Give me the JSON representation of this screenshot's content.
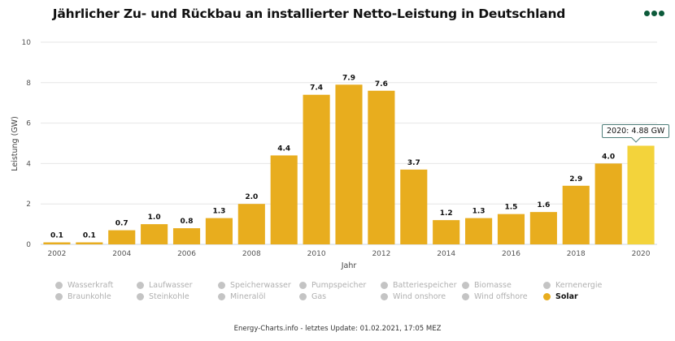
{
  "header": {
    "title": "Jährlicher Zu- und Rückbau an installierter Netto-Leistung in Deutschland",
    "menu_icon": "more-dots-icon"
  },
  "chart_data": {
    "type": "bar",
    "title": "Jährlicher Zu- und Rückbau an installierter Netto-Leistung in Deutschland",
    "xlabel": "Jahr",
    "ylabel": "Leistung (GW)",
    "ylim": [
      0,
      10
    ],
    "yticks": [
      "0",
      "2",
      "4",
      "6",
      "8",
      "10"
    ],
    "ytick_values": [
      0,
      2,
      4,
      6,
      8,
      10
    ],
    "categories": [
      "2002",
      "2003",
      "2004",
      "2005",
      "2006",
      "2007",
      "2008",
      "2009",
      "2010",
      "2011",
      "2012",
      "2013",
      "2014",
      "2015",
      "2016",
      "2017",
      "2018",
      "2019",
      "2020"
    ],
    "xtick_labels": [
      "2002",
      "2004",
      "2006",
      "2008",
      "2010",
      "2012",
      "2014",
      "2016",
      "2018",
      "2020"
    ],
    "values": [
      0.1,
      0.1,
      0.7,
      1.0,
      0.8,
      1.3,
      2.0,
      4.4,
      7.4,
      7.9,
      7.6,
      3.7,
      1.2,
      1.3,
      1.5,
      1.6,
      2.9,
      4.0,
      4.88
    ],
    "data_labels": [
      "0.1",
      "0.1",
      "0.7",
      "1.0",
      "0.8",
      "1.3",
      "2.0",
      "4.4",
      "7.4",
      "7.9",
      "7.6",
      "3.7",
      "1.2",
      "1.3",
      "1.5",
      "1.6",
      "2.9",
      "4.0",
      ""
    ],
    "series_name": "Solar",
    "grid": true,
    "highlighted_index": 18,
    "colors": {
      "bar": "#e8ad1e",
      "bar_highlight": "#f3d33b",
      "grid": "#e6e6e6",
      "axis": "#c9d6e3"
    }
  },
  "tooltip": {
    "text": "2020: 4.88 GW"
  },
  "legend": {
    "placement": "bottom",
    "items": [
      {
        "label": "Wasserkraft",
        "active": false
      },
      {
        "label": "Laufwasser",
        "active": false
      },
      {
        "label": "Speicherwasser",
        "active": false
      },
      {
        "label": "Pumpspeicher",
        "active": false
      },
      {
        "label": "Batteriespeicher",
        "active": false
      },
      {
        "label": "Biomasse",
        "active": false
      },
      {
        "label": "Kernenergie",
        "active": false
      },
      {
        "label": "Braunkohle",
        "active": false
      },
      {
        "label": "Steinkohle",
        "active": false
      },
      {
        "label": "Mineralöl",
        "active": false
      },
      {
        "label": "Gas",
        "active": false
      },
      {
        "label": "Wind onshore",
        "active": false
      },
      {
        "label": "Wind offshore",
        "active": false
      },
      {
        "label": "Solar",
        "active": true,
        "color": "#e8ad1e"
      }
    ]
  },
  "footer": {
    "text": "Energy-Charts.info - letztes Update: 01.02.2021, 17:05 MEZ"
  }
}
